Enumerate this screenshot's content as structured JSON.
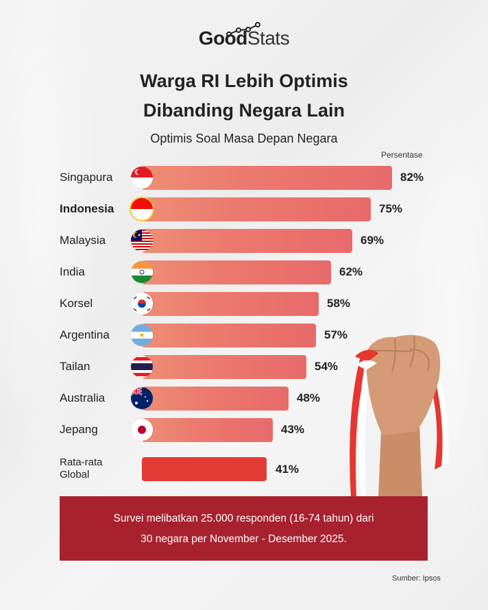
{
  "brand": {
    "logo_bold": "Good",
    "logo_light": "Stats"
  },
  "header": {
    "title_line1": "Warga RI Lebih Optimis",
    "title_line2": "Dibanding Negara Lain",
    "subtitle": "Optimis Soal Masa Depan Negara",
    "unit_label": "Persentase"
  },
  "rows": [
    {
      "label": "Singapura",
      "value": "82%",
      "flag": "singapore-flag"
    },
    {
      "label": "Indonesia",
      "value": "75%",
      "flag": "indonesia-flag"
    },
    {
      "label": "Malaysia",
      "value": "69%",
      "flag": "malaysia-flag"
    },
    {
      "label": "India",
      "value": "62%",
      "flag": "india-flag"
    },
    {
      "label": "Korsel",
      "value": "58%",
      "flag": "south-korea-flag"
    },
    {
      "label": "Argentina",
      "value": "57%",
      "flag": "argentina-flag"
    },
    {
      "label": "Tailan",
      "value": "54%",
      "flag": "thailand-flag"
    },
    {
      "label": "Australia",
      "value": "48%",
      "flag": "australia-flag"
    },
    {
      "label": "Jepang",
      "value": "43%",
      "flag": "japan-flag"
    }
  ],
  "global": {
    "label_line1": "Rata-rata",
    "label_line2": "Global",
    "value": "41%"
  },
  "footer": {
    "line1": "Survei melibatkan 25.000 responden (16-74 tahun) dari",
    "line2": "30 negara per November - Desember 2025.",
    "source": "Sumber: Ipsos"
  },
  "colors": {
    "bar_start": "#ed8e76",
    "bar_end": "#e86a6b",
    "global_bar": "#e23b33",
    "footer_bg": "#a7222e"
  },
  "chart_data": {
    "type": "bar",
    "orientation": "horizontal",
    "title": "Warga RI Lebih Optimis Dibanding Negara Lain",
    "subtitle": "Optimis Soal Masa Depan Negara",
    "xlabel": "Persentase",
    "ylabel": "",
    "categories": [
      "Singapura",
      "Indonesia",
      "Malaysia",
      "India",
      "Korsel",
      "Argentina",
      "Tailan",
      "Australia",
      "Jepang",
      "Rata-rata Global"
    ],
    "values": [
      82,
      75,
      69,
      62,
      58,
      57,
      54,
      48,
      43,
      41
    ],
    "unit": "%",
    "highlight": "Indonesia",
    "grid": false,
    "legend": "none",
    "source": "Ipsos"
  }
}
